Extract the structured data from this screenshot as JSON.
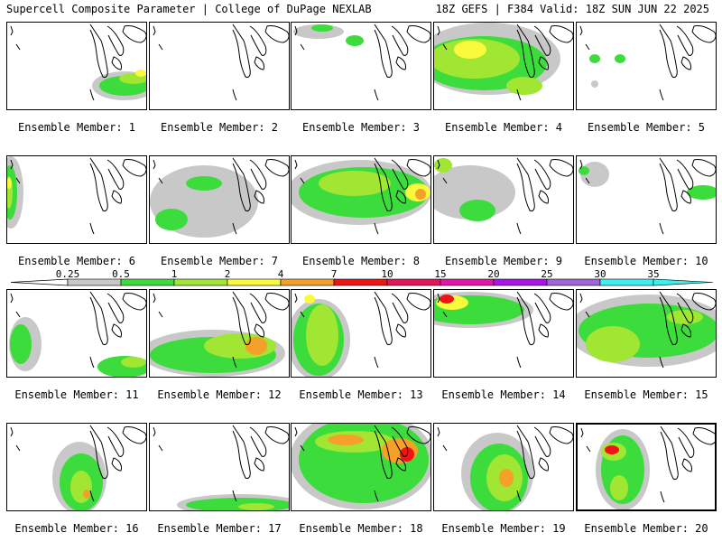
{
  "header": {
    "left": "Supercell Composite Parameter | College of DuPage NEXLAB",
    "right": "18Z GEFS | F384 Valid: 18Z SUN JUN 22 2025"
  },
  "legend": {
    "ticks": [
      "0.25",
      "0.5",
      "1",
      "2",
      "4",
      "7",
      "10",
      "15",
      "20",
      "25",
      "30",
      "35"
    ],
    "colors": [
      "#c8c8c8",
      "#3cdc3c",
      "#a0e632",
      "#fafa3c",
      "#f5a028",
      "#f01414",
      "#e6145a",
      "#e614aa",
      "#aa14e6",
      "#a064dc",
      "#3cf0f0"
    ]
  },
  "members": [
    {
      "label": "Ensemble Member: 1"
    },
    {
      "label": "Ensemble Member: 2"
    },
    {
      "label": "Ensemble Member: 3"
    },
    {
      "label": "Ensemble Member: 4"
    },
    {
      "label": "Ensemble Member: 5"
    },
    {
      "label": "Ensemble Member: 6"
    },
    {
      "label": "Ensemble Member: 7"
    },
    {
      "label": "Ensemble Member: 8"
    },
    {
      "label": "Ensemble Member: 9"
    },
    {
      "label": "Ensemble Member: 10"
    },
    {
      "label": "Ensemble Member: 11"
    },
    {
      "label": "Ensemble Member: 12"
    },
    {
      "label": "Ensemble Member: 13"
    },
    {
      "label": "Ensemble Member: 14"
    },
    {
      "label": "Ensemble Member: 15"
    },
    {
      "label": "Ensemble Member: 16"
    },
    {
      "label": "Ensemble Member: 17"
    },
    {
      "label": "Ensemble Member: 18"
    },
    {
      "label": "Ensemble Member: 19"
    },
    {
      "label": "Ensemble Member: 20"
    }
  ]
}
